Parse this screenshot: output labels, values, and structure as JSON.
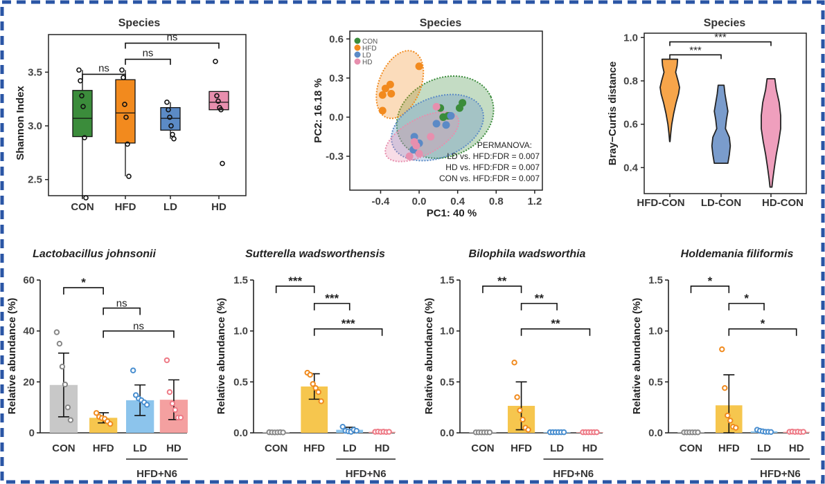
{
  "colors": {
    "frame": "#2a55a5",
    "CON": "#3b8c3b",
    "HFD": "#f28a1e",
    "LD": "#5b8ac6",
    "HD": "#e78fae",
    "violin_HFD": "#f7a54a",
    "violin_LD": "#7a9ccc",
    "violin_HD": "#ef9fbd",
    "bar_CON": "#c8c8c8",
    "bar_HFD": "#f6c64e",
    "bar_LD": "#8cc4ec",
    "bar_HD": "#f4a0a0",
    "pt_CON": "#888888",
    "pt_HFD": "#f08a1e",
    "pt_LD": "#4a8fd0",
    "pt_HD": "#ee7a86"
  },
  "chart_data": [
    {
      "type": "box",
      "title": "Species",
      "ylabel": "Shannon Index",
      "categories": [
        "CON",
        "HFD",
        "LD",
        "HD"
      ],
      "ylim": [
        2.35,
        3.85
      ],
      "yticks": [
        "2.5",
        "3.0",
        "3.5"
      ],
      "ytick_values": [
        2.5,
        3.0,
        3.5
      ],
      "boxes": [
        {
          "name": "CON",
          "q1": 2.9,
          "median": 3.07,
          "q3": 3.33,
          "min": 2.33,
          "max": 3.52
        },
        {
          "name": "HFD",
          "q1": 2.84,
          "median": 3.12,
          "q3": 3.43,
          "min": 2.53,
          "max": 3.52
        },
        {
          "name": "LD",
          "q1": 2.96,
          "median": 3.07,
          "q3": 3.17,
          "min": 2.88,
          "max": 3.22
        },
        {
          "name": "HD",
          "q1": 3.15,
          "median": 3.22,
          "q3": 3.32,
          "min": 3.15,
          "max": 3.32
        }
      ],
      "points": [
        [
          3.52,
          3.42,
          3.28,
          3.18,
          2.89,
          2.33
        ],
        [
          3.52,
          3.45,
          3.2,
          3.08,
          2.83,
          2.53
        ],
        [
          3.22,
          3.15,
          3.08,
          3.0,
          2.92,
          2.88
        ],
        [
          3.6,
          3.28,
          3.23,
          3.17,
          3.15,
          2.65
        ]
      ],
      "significance": [
        {
          "from": 0,
          "to": 1,
          "label": "ns",
          "level": 3.48
        },
        {
          "from": 1,
          "to": 2,
          "label": "ns",
          "level": 3.62
        },
        {
          "from": 1,
          "to": 3,
          "label": "ns",
          "level": 3.77
        }
      ]
    },
    {
      "type": "scatter",
      "title": "Species",
      "xlabel": "PC1: 40 %",
      "ylabel": "PC2: 16.18 %",
      "xlim": [
        -0.72,
        1.28
      ],
      "ylim": [
        -0.56,
        0.66
      ],
      "xticks": [
        "-0.4",
        "0.0",
        "0.4",
        "0.8",
        "1.2"
      ],
      "xtick_values": [
        -0.4,
        0.0,
        0.4,
        0.8,
        1.2
      ],
      "yticks": [
        "-0.3",
        "0.0",
        "0.3",
        "0.6"
      ],
      "ytick_values": [
        -0.3,
        0.0,
        0.3,
        0.6
      ],
      "legend": [
        "CON",
        "HFD",
        "LD",
        "HD"
      ],
      "series": [
        {
          "name": "CON",
          "points": [
            [
              0.25,
              0.0
            ],
            [
              0.32,
              0.01
            ],
            [
              0.42,
              0.07
            ],
            [
              0.45,
              0.11
            ],
            [
              0.3,
              0.01
            ],
            [
              0.22,
              0.07
            ]
          ]
        },
        {
          "name": "HFD",
          "points": [
            [
              -0.38,
              0.17
            ],
            [
              -0.35,
              0.22
            ],
            [
              -0.3,
              0.25
            ],
            [
              -0.29,
              0.18
            ],
            [
              -0.38,
              0.05
            ],
            [
              0.0,
              0.39
            ]
          ]
        },
        {
          "name": "LD",
          "points": [
            [
              -0.05,
              -0.15
            ],
            [
              0.0,
              -0.2
            ],
            [
              -0.06,
              -0.25
            ],
            [
              0.18,
              -0.05
            ],
            [
              0.28,
              -0.06
            ],
            [
              0.33,
              0.01
            ]
          ]
        },
        {
          "name": "HD",
          "points": [
            [
              -0.05,
              -0.19
            ],
            [
              -0.03,
              -0.22
            ],
            [
              0.0,
              -0.28
            ],
            [
              0.12,
              -0.15
            ],
            [
              0.18,
              0.08
            ],
            [
              -0.1,
              -0.3
            ]
          ]
        }
      ],
      "ellipses": [
        {
          "name": "CON",
          "cx": 0.27,
          "cy": 0.0,
          "rx": 0.52,
          "ry": 0.3,
          "angle": -24
        },
        {
          "name": "HFD",
          "cx": -0.2,
          "cy": 0.25,
          "rx": 0.37,
          "ry": 0.16,
          "angle": -68
        },
        {
          "name": "LD",
          "cx": 0.19,
          "cy": -0.08,
          "rx": 0.5,
          "ry": 0.23,
          "angle": -22
        },
        {
          "name": "HD",
          "cx": 0.03,
          "cy": -0.15,
          "rx": 0.42,
          "ry": 0.14,
          "angle": -28
        }
      ],
      "annotation": [
        "PERMANOVA:",
        "LD vs. HFD:FDR = 0.007",
        "HD vs. HFD:FDR = 0.007",
        "CON vs. HFD:FDR = 0.007"
      ]
    },
    {
      "type": "violin",
      "title": "Species",
      "ylabel": "Bray−Curtis distance",
      "categories": [
        "HFD-CON",
        "LD-CON",
        "HD-CON"
      ],
      "ylim": [
        0.28,
        1.02
      ],
      "yticks": [
        "0.4",
        "0.6",
        "0.8",
        "1.0"
      ],
      "ytick_values": [
        0.4,
        0.6,
        0.8,
        1.0
      ],
      "violins": [
        {
          "name": "HFD-CON",
          "min": 0.52,
          "max": 0.9,
          "shape": [
            [
              0.52,
              0.02
            ],
            [
              0.56,
              0.1
            ],
            [
              0.6,
              0.2
            ],
            [
              0.65,
              0.4
            ],
            [
              0.7,
              0.65
            ],
            [
              0.74,
              0.9
            ],
            [
              0.77,
              1.0
            ],
            [
              0.8,
              0.85
            ],
            [
              0.84,
              0.6
            ],
            [
              0.87,
              0.75
            ],
            [
              0.9,
              0.8
            ]
          ]
        },
        {
          "name": "LD-CON",
          "min": 0.42,
          "max": 0.78,
          "shape": [
            [
              0.42,
              0.7
            ],
            [
              0.46,
              0.85
            ],
            [
              0.5,
              0.95
            ],
            [
              0.54,
              0.85
            ],
            [
              0.58,
              0.45
            ],
            [
              0.62,
              0.55
            ],
            [
              0.66,
              0.7
            ],
            [
              0.7,
              0.55
            ],
            [
              0.74,
              0.4
            ],
            [
              0.78,
              0.3
            ]
          ]
        },
        {
          "name": "HD-CON",
          "min": 0.31,
          "max": 0.81,
          "shape": [
            [
              0.31,
              0.1
            ],
            [
              0.35,
              0.2
            ],
            [
              0.4,
              0.35
            ],
            [
              0.46,
              0.55
            ],
            [
              0.52,
              0.8
            ],
            [
              0.58,
              1.0
            ],
            [
              0.64,
              1.0
            ],
            [
              0.7,
              0.85
            ],
            [
              0.76,
              0.55
            ],
            [
              0.81,
              0.4
            ]
          ]
        }
      ],
      "significance": [
        {
          "from": 0,
          "to": 1,
          "label": "***",
          "level": 0.92
        },
        {
          "from": 0,
          "to": 2,
          "label": "***",
          "level": 0.98
        }
      ]
    },
    {
      "type": "bar",
      "title": "Lactobacillus johnsonii",
      "ylabel": "Relative abundance (%)",
      "categories": [
        "CON",
        "HFD",
        "LD",
        "HD"
      ],
      "group_label": "HFD+N6",
      "ylim": [
        0,
        60
      ],
      "yticks": [
        "0",
        "20",
        "40",
        "60"
      ],
      "ytick_values": [
        0,
        20,
        40,
        60
      ],
      "values": [
        18.8,
        5.9,
        12.8,
        13
      ],
      "errors": [
        12.5,
        2.0,
        6.0,
        7.8
      ],
      "points": [
        [
          39.5,
          35,
          26,
          19,
          10,
          5
        ],
        [
          7.8,
          6.3,
          5.8,
          5.5,
          4.5,
          3.5
        ],
        [
          24.5,
          14.8,
          13.5,
          12.8,
          12,
          11
        ],
        [
          28.5,
          16,
          11.5,
          9,
          6,
          6
        ]
      ],
      "significance": [
        {
          "from": 0,
          "to": 1,
          "label": "*",
          "level": 57
        },
        {
          "from": 1,
          "to": 2,
          "label": "ns",
          "level": 49
        },
        {
          "from": 1,
          "to": 3,
          "label": "ns",
          "level": 40
        }
      ]
    },
    {
      "type": "bar",
      "title": "Sutterella wadsworthensis",
      "ylabel": "Relative abundance (%)",
      "categories": [
        "CON",
        "HFD",
        "LD",
        "HD"
      ],
      "group_label": "HFD+N6",
      "ylim": [
        0,
        1.5
      ],
      "yticks": [
        "0.0",
        "0.5",
        "1.0",
        "1.5"
      ],
      "ytick_values": [
        0,
        0.5,
        1.0,
        1.5
      ],
      "values": [
        0.005,
        0.455,
        0.03,
        0.01
      ],
      "errors": [
        0.003,
        0.125,
        0.025,
        0.005
      ],
      "points": [
        [
          0.006,
          0.005,
          0.004,
          0.005,
          0.006,
          0.004
        ],
        [
          0.59,
          0.57,
          0.48,
          0.44,
          0.4,
          0.31
        ],
        [
          0.06,
          0.02,
          0.015,
          0.01,
          0.03,
          0.02
        ],
        [
          0.01,
          0.012,
          0.009,
          0.011,
          0.008,
          0.01
        ]
      ],
      "significance": [
        {
          "from": 0,
          "to": 1,
          "label": "***",
          "level": 1.44
        },
        {
          "from": 1,
          "to": 2,
          "label": "***",
          "level": 1.27
        },
        {
          "from": 1,
          "to": 3,
          "label": "***",
          "level": 1.02
        }
      ]
    },
    {
      "type": "bar",
      "title": "Bilophila wadsworthia",
      "ylabel": "Relative abundance (%)",
      "categories": [
        "CON",
        "HFD",
        "LD",
        "HD"
      ],
      "group_label": "HFD+N6",
      "ylim": [
        0,
        1.5
      ],
      "yticks": [
        "0.0",
        "0.5",
        "1.0",
        "1.5"
      ],
      "ytick_values": [
        0,
        0.5,
        1.0,
        1.5
      ],
      "values": [
        0.005,
        0.265,
        0.006,
        0.006
      ],
      "errors": [
        0.003,
        0.235,
        0.003,
        0.003
      ],
      "points": [
        [
          0.005,
          0.005,
          0.005,
          0.005,
          0.005,
          0.005
        ],
        [
          0.69,
          0.35,
          0.22,
          0.13,
          0.05,
          0.03
        ],
        [
          0.006,
          0.006,
          0.006,
          0.006,
          0.006,
          0.006
        ],
        [
          0.006,
          0.006,
          0.006,
          0.006,
          0.006,
          0.006
        ]
      ],
      "significance": [
        {
          "from": 0,
          "to": 1,
          "label": "**",
          "level": 1.44
        },
        {
          "from": 1,
          "to": 2,
          "label": "**",
          "level": 1.27
        },
        {
          "from": 1,
          "to": 3,
          "label": "**",
          "level": 1.02
        }
      ]
    },
    {
      "type": "bar",
      "title": "Holdemania filiformis",
      "ylabel": "Relative abundance (%)",
      "categories": [
        "CON",
        "HFD",
        "LD",
        "HD"
      ],
      "group_label": "HFD+N6",
      "ylim": [
        0,
        1.5
      ],
      "yticks": [
        "0.0",
        "0.5",
        "1.0",
        "1.5"
      ],
      "ytick_values": [
        0,
        0.5,
        1.0,
        1.5
      ],
      "values": [
        0.005,
        0.27,
        0.015,
        0.01
      ],
      "errors": [
        0.003,
        0.3,
        0.008,
        0.005
      ],
      "points": [
        [
          0.005,
          0.005,
          0.005,
          0.005,
          0.005,
          0.005
        ],
        [
          0.82,
          0.44,
          0.17,
          0.12,
          0.06,
          0.05
        ],
        [
          0.03,
          0.02,
          0.015,
          0.01,
          0.01,
          0.008
        ],
        [
          0.01,
          0.012,
          0.009,
          0.011,
          0.008,
          0.01
        ]
      ],
      "significance": [
        {
          "from": 0,
          "to": 1,
          "label": "*",
          "level": 1.44
        },
        {
          "from": 1,
          "to": 2,
          "label": "*",
          "level": 1.27
        },
        {
          "from": 1,
          "to": 3,
          "label": "*",
          "level": 1.02
        }
      ]
    }
  ]
}
